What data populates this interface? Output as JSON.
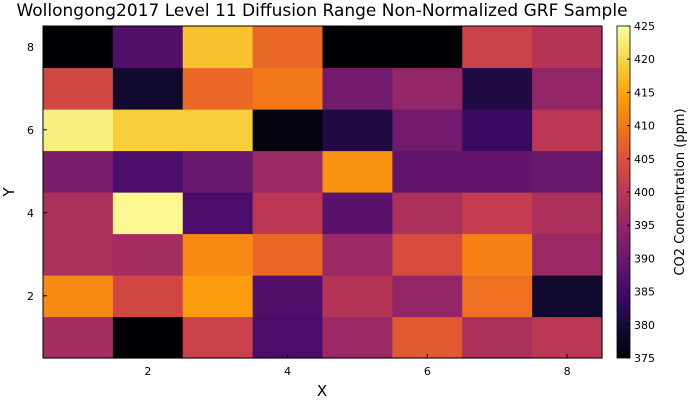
{
  "chart_data": {
    "type": "heatmap",
    "title": "Wollongong2017 Level 11 Diffusion Range Non-Normalized GRF Sample",
    "xlabel": "X",
    "ylabel": "Y",
    "colorbar_label": "CO2 Concentration (ppm)",
    "x": [
      1,
      2,
      3,
      4,
      5,
      6,
      7,
      8
    ],
    "y": [
      1,
      2,
      3,
      4,
      5,
      6,
      7,
      8
    ],
    "x_ticks": [
      2,
      4,
      6,
      8
    ],
    "y_ticks": [
      2,
      4,
      6,
      8
    ],
    "clim": [
      375,
      425
    ],
    "colorbar_ticks": [
      375,
      380,
      385,
      390,
      395,
      400,
      405,
      410,
      415,
      420,
      425
    ],
    "colormap": "inferno",
    "values": [
      [
        397,
        375,
        402,
        386,
        396,
        406,
        398,
        400
      ],
      [
        412,
        403,
        414,
        387,
        399,
        395,
        409,
        379
      ],
      [
        398,
        397,
        412,
        408,
        396,
        404,
        411,
        396
      ],
      [
        398,
        424,
        386,
        400,
        388,
        398,
        401,
        398
      ],
      [
        392,
        386,
        390,
        396,
        413,
        389,
        389,
        390
      ],
      [
        423,
        419,
        419,
        376,
        381,
        391,
        384,
        400
      ],
      [
        403,
        379,
        408,
        410,
        391,
        395,
        381,
        395
      ],
      [
        375,
        387,
        418,
        408,
        375,
        375,
        402,
        399
      ]
    ]
  }
}
